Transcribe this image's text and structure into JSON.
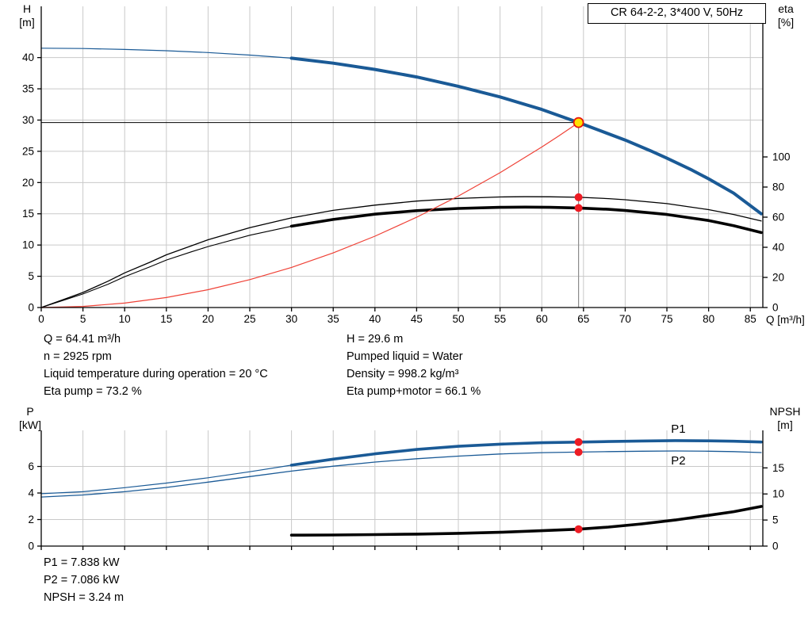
{
  "colors": {
    "curve_blue": "#1a5a96",
    "curve_black": "#000000",
    "curve_red": "#ef4136",
    "grid": "#c9c9c9",
    "axis": "#000000",
    "duty_line_gray": "#8c8c8c",
    "duty_point_fill": "#ffe100",
    "duty_point_ring": "#e8150d",
    "marker_red": "#ed1c24"
  },
  "title_box": "CR 64-2-2, 3*400 V, 50Hz",
  "info_top": {
    "left": [
      "Q = 64.41 m³/h",
      "n = 2925 rpm",
      "Liquid temperature during operation = 20 °C",
      "Eta pump = 73.2 %"
    ],
    "right": [
      "H = 29.6 m",
      "Pumped liquid = Water",
      "Density = 998.2 kg/m³",
      "Eta pump+motor = 66.1 %"
    ]
  },
  "info_bottom": [
    "P1 = 7.838 kW",
    "P2 = 7.086 kW",
    "NPSH = 3.24 m"
  ],
  "chart_data": [
    {
      "type": "line",
      "name": "qh-eta-chart",
      "title": "CR 64-2-2, 3*400 V, 50Hz",
      "x": {
        "label": "Q [m³/h]",
        "min": 0,
        "max": 86.5,
        "ticks": [
          0,
          5,
          10,
          15,
          20,
          25,
          30,
          35,
          40,
          45,
          50,
          55,
          60,
          65,
          70,
          75,
          80,
          85
        ],
        "show_tick_labels": true
      },
      "y_left": {
        "name": "H",
        "unit": "[m]",
        "min": 0,
        "max": 48.2,
        "ticks": [
          0,
          5,
          10,
          15,
          20,
          25,
          30,
          35,
          40
        ]
      },
      "y_right": {
        "name": "eta",
        "unit": "[%]",
        "min": 0,
        "max": 200,
        "ticks": [
          0,
          20,
          40,
          60,
          80,
          100
        ]
      },
      "duty_point": {
        "q": 64.41,
        "h": 29.6,
        "eta_pump": 73.2,
        "eta_pump_motor": 66.1
      },
      "series": [
        {
          "name": "head-curve",
          "axis": "left",
          "color": "#1a5a96",
          "width": 4,
          "thin_before": 30,
          "thin_width": 1.2,
          "points": [
            [
              0,
              41.5
            ],
            [
              5,
              41.45
            ],
            [
              10,
              41.3
            ],
            [
              15,
              41.1
            ],
            [
              20,
              40.8
            ],
            [
              25,
              40.4
            ],
            [
              30,
              39.9
            ],
            [
              35,
              39.1
            ],
            [
              40,
              38.1
            ],
            [
              45,
              36.9
            ],
            [
              50,
              35.4
            ],
            [
              55,
              33.7
            ],
            [
              60,
              31.7
            ],
            [
              64.41,
              29.6
            ],
            [
              67,
              28.3
            ],
            [
              70,
              26.8
            ],
            [
              73,
              25.1
            ],
            [
              75,
              23.9
            ],
            [
              78,
              22.0
            ],
            [
              80,
              20.6
            ],
            [
              83,
              18.3
            ],
            [
              86.3,
              15.0
            ]
          ]
        },
        {
          "name": "eta-pump-curve",
          "axis": "right",
          "color": "#000000",
          "width": 1.3,
          "points": [
            [
              0,
              0
            ],
            [
              3,
              6
            ],
            [
              5,
              10
            ],
            [
              8,
              17.5
            ],
            [
              10,
              23
            ],
            [
              13,
              30
            ],
            [
              15,
              35
            ],
            [
              18,
              41
            ],
            [
              20,
              45
            ],
            [
              25,
              53
            ],
            [
              30,
              59.5
            ],
            [
              35,
              64.5
            ],
            [
              40,
              68
            ],
            [
              45,
              70.7
            ],
            [
              50,
              72.4
            ],
            [
              55,
              73.4
            ],
            [
              58,
              73.6
            ],
            [
              61,
              73.5
            ],
            [
              64.41,
              73.2
            ],
            [
              68,
              72.3
            ],
            [
              70,
              71.6
            ],
            [
              75,
              69
            ],
            [
              80,
              65
            ],
            [
              83,
              61.8
            ],
            [
              86.3,
              57.5
            ]
          ]
        },
        {
          "name": "eta-pump-motor-curve",
          "axis": "right",
          "color": "#000000",
          "width": 3.6,
          "thin_before": 30,
          "thin_width": 1.1,
          "points": [
            [
              0,
              0
            ],
            [
              3,
              5.4
            ],
            [
              5,
              9
            ],
            [
              8,
              15.5
            ],
            [
              10,
              20.5
            ],
            [
              13,
              27
            ],
            [
              15,
              31.5
            ],
            [
              18,
              37
            ],
            [
              20,
              40.5
            ],
            [
              25,
              48
            ],
            [
              30,
              54
            ],
            [
              35,
              58.5
            ],
            [
              40,
              62
            ],
            [
              45,
              64.3
            ],
            [
              50,
              65.8
            ],
            [
              55,
              66.5
            ],
            [
              58,
              66.7
            ],
            [
              61,
              66.5
            ],
            [
              64.41,
              66.1
            ],
            [
              68,
              65.2
            ],
            [
              70,
              64.4
            ],
            [
              75,
              61.8
            ],
            [
              80,
              57.8
            ],
            [
              83,
              54.3
            ],
            [
              86.3,
              49.8
            ]
          ]
        },
        {
          "name": "system-curve",
          "axis": "left",
          "color": "#ef4136",
          "width": 1.2,
          "points": [
            [
              0,
              0
            ],
            [
              5,
              0.18
            ],
            [
              10,
              0.71
            ],
            [
              15,
              1.6
            ],
            [
              20,
              2.85
            ],
            [
              25,
              4.46
            ],
            [
              30,
              6.42
            ],
            [
              35,
              8.74
            ],
            [
              40,
              11.41
            ],
            [
              45,
              14.45
            ],
            [
              50,
              17.84
            ],
            [
              55,
              21.58
            ],
            [
              60,
              25.68
            ],
            [
              62,
              27.43
            ],
            [
              64.41,
              29.6
            ]
          ]
        }
      ],
      "markers": [
        {
          "shape": "dot",
          "q": 64.41,
          "v": 73.2,
          "axis": "right"
        },
        {
          "shape": "dot",
          "q": 64.41,
          "v": 66.1,
          "axis": "right"
        }
      ]
    },
    {
      "type": "line",
      "name": "power-npsh-chart",
      "x": {
        "label": "",
        "min": 0,
        "max": 86.5,
        "ticks": [
          0,
          5,
          10,
          15,
          20,
          25,
          30,
          35,
          40,
          45,
          50,
          55,
          60,
          65,
          70,
          75,
          80,
          85
        ],
        "show_tick_labels": false
      },
      "y_left": {
        "name": "P",
        "unit": "[kW]",
        "min": 0,
        "max": 8.72,
        "ticks": [
          0,
          2,
          4,
          6
        ]
      },
      "y_right": {
        "name": "NPSH",
        "unit": "[m]",
        "min": 0,
        "max": 22.2,
        "ticks": [
          0,
          5,
          10,
          15
        ]
      },
      "series": [
        {
          "name": "p1-curve",
          "axis": "left",
          "color": "#1a5a96",
          "width": 3.6,
          "thin_before": 30,
          "thin_width": 1.2,
          "points": [
            [
              0,
              3.95
            ],
            [
              5,
              4.1
            ],
            [
              10,
              4.4
            ],
            [
              15,
              4.75
            ],
            [
              20,
              5.15
            ],
            [
              25,
              5.6
            ],
            [
              30,
              6.1
            ],
            [
              35,
              6.55
            ],
            [
              40,
              6.95
            ],
            [
              45,
              7.28
            ],
            [
              50,
              7.52
            ],
            [
              55,
              7.68
            ],
            [
              60,
              7.79
            ],
            [
              64.41,
              7.838
            ],
            [
              68,
              7.88
            ],
            [
              72,
              7.92
            ],
            [
              76,
              7.95
            ],
            [
              80,
              7.93
            ],
            [
              83,
              7.9
            ],
            [
              86.3,
              7.84
            ]
          ]
        },
        {
          "name": "p2-curve",
          "axis": "left",
          "color": "#1a5a96",
          "width": 1.3,
          "points": [
            [
              0,
              3.7
            ],
            [
              5,
              3.85
            ],
            [
              10,
              4.1
            ],
            [
              15,
              4.42
            ],
            [
              20,
              4.82
            ],
            [
              25,
              5.24
            ],
            [
              30,
              5.65
            ],
            [
              35,
              6.02
            ],
            [
              40,
              6.33
            ],
            [
              45,
              6.58
            ],
            [
              50,
              6.78
            ],
            [
              55,
              6.94
            ],
            [
              60,
              7.04
            ],
            [
              64.41,
              7.086
            ],
            [
              68,
              7.12
            ],
            [
              72,
              7.15
            ],
            [
              76,
              7.17
            ],
            [
              80,
              7.15
            ],
            [
              83,
              7.12
            ],
            [
              86.3,
              7.05
            ]
          ]
        },
        {
          "name": "npsh-curve",
          "axis": "right",
          "color": "#000000",
          "width": 3.6,
          "points": [
            [
              30,
              2.1
            ],
            [
              35,
              2.13
            ],
            [
              40,
              2.2
            ],
            [
              45,
              2.3
            ],
            [
              50,
              2.45
            ],
            [
              55,
              2.65
            ],
            [
              60,
              2.95
            ],
            [
              64.41,
              3.24
            ],
            [
              68,
              3.65
            ],
            [
              72,
              4.25
            ],
            [
              76,
              5.0
            ],
            [
              80,
              5.9
            ],
            [
              83,
              6.6
            ],
            [
              86.3,
              7.6
            ]
          ]
        }
      ],
      "markers": [
        {
          "shape": "dot",
          "q": 64.41,
          "v": 7.838,
          "axis": "left"
        },
        {
          "shape": "dot",
          "q": 64.41,
          "v": 7.086,
          "axis": "left"
        },
        {
          "shape": "dot",
          "q": 64.41,
          "v": 3.24,
          "axis": "right"
        }
      ],
      "labels": [
        {
          "text": "P1",
          "q": 75.5,
          "v": 8.55,
          "axis": "left",
          "color": "#1a5a96"
        },
        {
          "text": "P2",
          "q": 75.5,
          "v": 6.15,
          "axis": "left",
          "color": "#1a5a96"
        }
      ]
    }
  ]
}
